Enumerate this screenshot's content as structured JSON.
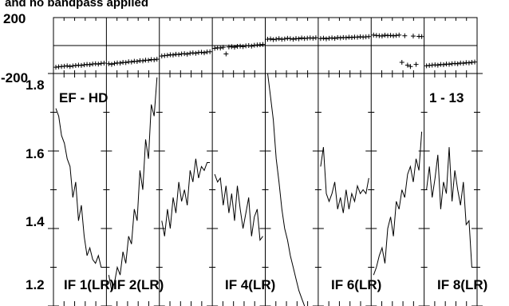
{
  "chart_data": {
    "type": "line",
    "title": "and no bandpass applied",
    "top_panel": {
      "type": "scatter",
      "ylim": [
        -200,
        200
      ],
      "y_ticks": [
        "200",
        "-200"
      ],
      "midline": 0
    },
    "bottom_panel": {
      "ylim": [
        1.2,
        1.8
      ],
      "y_ticks": [
        "1.8",
        "1.6",
        "1.4",
        "1.2"
      ]
    },
    "annotations": {
      "baseline": "EF - HD",
      "channels": "1 - 13"
    },
    "panel_labels": [
      "IF 1(LR)",
      "IF 2(LR)",
      "IF 4(LR)",
      "IF 6(LR)",
      "IF 8(LR)"
    ],
    "series": [
      {
        "phase": [
          -155,
          -152,
          -150,
          -148,
          -145,
          -150,
          -146,
          -143,
          -140,
          -142,
          -138,
          -135,
          -137,
          -132,
          -130,
          -133,
          -128,
          -126
        ],
        "amp": [
          1.71,
          1.69,
          1.64,
          1.62,
          1.58,
          1.56,
          1.48,
          1.52,
          1.42,
          1.46,
          1.38,
          1.33,
          1.35,
          1.32,
          1.31,
          1.33,
          1.3,
          1.3
        ]
      },
      {
        "phase": [
          -130,
          -135,
          -128,
          -124,
          -126,
          -120,
          -122,
          -116,
          -118,
          -112,
          -114,
          -108,
          -110,
          -104,
          -106,
          -100,
          -102,
          -98
        ],
        "amp": [
          1.28,
          1.24,
          1.26,
          1.3,
          1.28,
          1.34,
          1.31,
          1.38,
          1.36,
          1.45,
          1.42,
          1.55,
          1.5,
          1.63,
          1.58,
          1.72,
          1.69,
          1.79
        ]
      },
      {
        "phase": [
          -75,
          -72,
          -70,
          -66,
          -68,
          -62,
          -64,
          -60,
          -58,
          -62,
          -55,
          -52,
          -56,
          -50,
          -48,
          -52,
          -46,
          -44
        ],
        "amp": [
          1.42,
          1.38,
          1.45,
          1.4,
          1.48,
          1.44,
          1.52,
          1.47,
          1.5,
          1.46,
          1.55,
          1.52,
          1.58,
          1.53,
          1.56,
          1.55,
          1.57,
          1.57
        ]
      },
      {
        "phase": [
          -20,
          -16,
          -18,
          -12,
          -60,
          -10,
          -8,
          -12,
          -6,
          -4,
          -8,
          -2,
          0,
          -4,
          2,
          4,
          6,
          8
        ],
        "amp": [
          1.54,
          1.52,
          1.53,
          1.46,
          1.51,
          1.44,
          1.49,
          1.42,
          1.51,
          1.45,
          1.4,
          1.44,
          1.48,
          1.38,
          1.43,
          1.45,
          1.37,
          1.38
        ]
      },
      {
        "phase": [
          45,
          48,
          42,
          46,
          50,
          44,
          47,
          52,
          49,
          45,
          51,
          48,
          54,
          50,
          53,
          55,
          52,
          56
        ],
        "amp": [
          1.8,
          1.74,
          1.68,
          1.58,
          1.52,
          1.45,
          1.4,
          1.37,
          1.33,
          1.3,
          1.27,
          1.24,
          1.22,
          1.2,
          1.18,
          1.17,
          1.16,
          1.16
        ]
      },
      {
        "phase": [
          50,
          53,
          48,
          52,
          55,
          51,
          57,
          54,
          58,
          56,
          60,
          57,
          61,
          59,
          63,
          60,
          62,
          64
        ],
        "amp": [
          1.56,
          1.61,
          1.49,
          1.47,
          1.49,
          1.52,
          1.45,
          1.48,
          1.44,
          1.5,
          1.45,
          1.49,
          1.47,
          1.51,
          1.49,
          1.5,
          1.49,
          1.53
        ]
      },
      {
        "phase": [
          75,
          72,
          70,
          68,
          74,
          71,
          73,
          69,
          72,
          75,
          -120,
          70,
          -140,
          -150,
          68,
          -135,
          66,
          64
        ],
        "amp": [
          1.28,
          1.3,
          1.33,
          1.35,
          1.31,
          1.4,
          1.43,
          1.38,
          1.47,
          1.45,
          1.5,
          1.48,
          1.54,
          1.56,
          1.52,
          1.58,
          1.55,
          1.65
        ]
      },
      {
        "phase": [
          -145,
          -142,
          -140,
          -138,
          -141,
          -135,
          -137,
          -132,
          -134,
          -130,
          -128,
          -131,
          -125,
          -127,
          -122,
          -124,
          -120,
          -118
        ],
        "amp": [
          1.5,
          1.56,
          1.48,
          1.53,
          1.59,
          1.45,
          1.52,
          1.49,
          1.61,
          1.47,
          1.55,
          1.5,
          1.46,
          1.52,
          1.41,
          1.42,
          1.3,
          1.3
        ]
      }
    ]
  }
}
